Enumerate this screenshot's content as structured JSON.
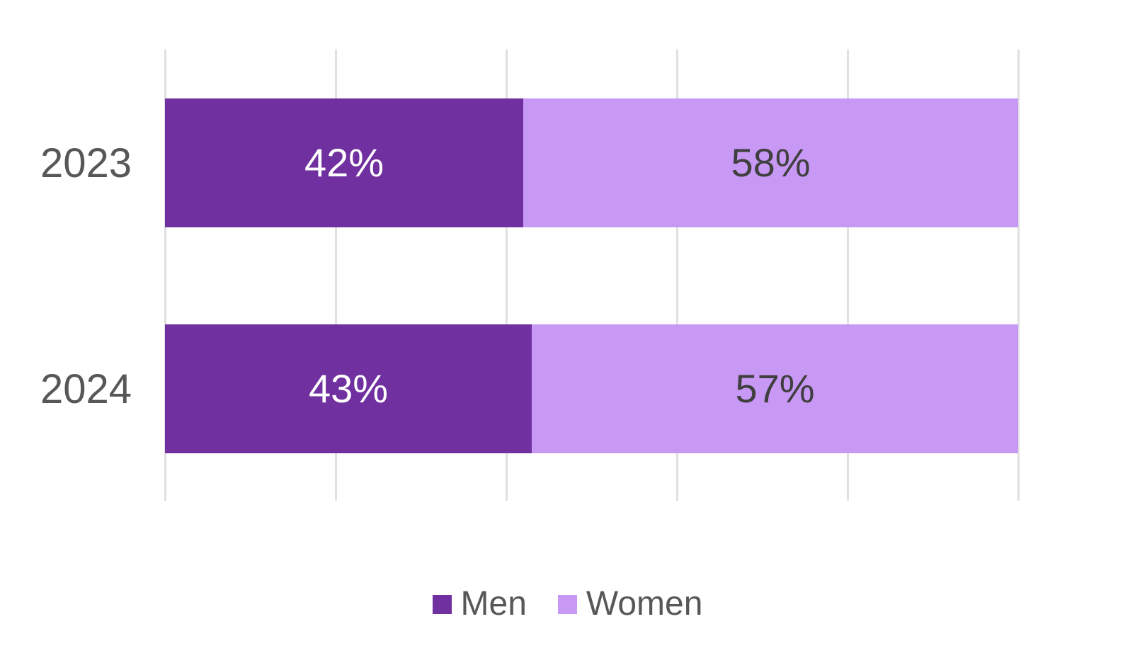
{
  "chart_data": {
    "type": "bar",
    "orientation": "horizontal",
    "stacked": true,
    "title": "",
    "categories": [
      "2023",
      "2024"
    ],
    "series": [
      {
        "name": "Men",
        "color": "#7030a0",
        "values": [
          42,
          43
        ],
        "labels": [
          "42%",
          "43%"
        ]
      },
      {
        "name": "Women",
        "color": "#c898f5",
        "values": [
          58,
          57
        ],
        "labels": [
          "58%",
          "57%"
        ]
      }
    ],
    "xlim": [
      0,
      100
    ],
    "gridline_interval": 20,
    "grid": true,
    "axis_tick_labels_shown": false,
    "legend_position": "bottom"
  },
  "legend": {
    "items": [
      {
        "label": "Men",
        "color": "#7030a0"
      },
      {
        "label": "Women",
        "color": "#c898f5"
      }
    ]
  },
  "colors": {
    "men": "#7030a0",
    "women": "#c898f5",
    "gridline": "#e0e0e0",
    "category_label": "#575757",
    "label_on_men": "#ffffff",
    "label_on_women": "#3f3f3f",
    "background": "#ffffff"
  }
}
